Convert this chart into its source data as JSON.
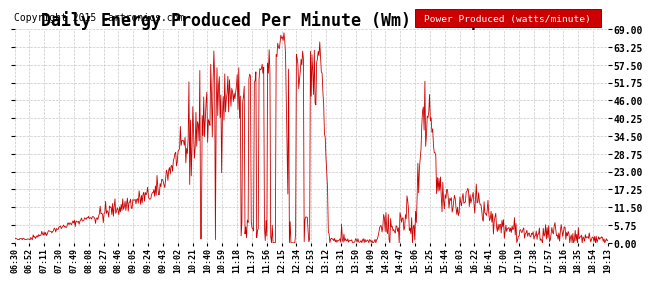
{
  "title": "Daily Energy Produced Per Minute (Wm) Fri Apr 10 19:28",
  "copyright": "Copyright 2015 Cartronics.com",
  "legend_label": "Power Produced (watts/minute)",
  "ylabel_right_ticks": [
    0.0,
    5.75,
    11.5,
    17.25,
    23.0,
    28.75,
    34.5,
    40.25,
    46.0,
    51.75,
    57.5,
    63.25,
    69.0
  ],
  "ymin": 0.0,
  "ymax": 69.0,
  "line_color": "#cc0000",
  "bg_color": "#ffffff",
  "grid_color": "#c8c8c8",
  "title_fontsize": 12,
  "copyright_fontsize": 7,
  "legend_bg": "#cc0000",
  "legend_text_color": "#ffffff",
  "x_tick_labels": [
    "06:30",
    "06:52",
    "07:11",
    "07:30",
    "07:49",
    "08:08",
    "08:27",
    "08:46",
    "09:05",
    "09:24",
    "09:43",
    "10:02",
    "10:21",
    "10:40",
    "10:59",
    "11:18",
    "11:37",
    "11:56",
    "12:15",
    "12:34",
    "12:53",
    "13:12",
    "13:31",
    "13:50",
    "14:09",
    "14:28",
    "14:47",
    "15:06",
    "15:25",
    "15:44",
    "16:03",
    "16:22",
    "16:41",
    "17:00",
    "17:19",
    "17:38",
    "17:57",
    "18:16",
    "18:35",
    "18:54",
    "19:13"
  ]
}
